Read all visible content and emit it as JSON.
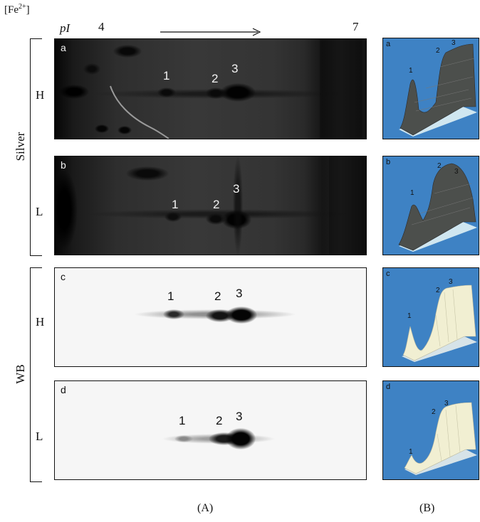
{
  "header": {
    "concentration_label_base": "[Fe",
    "concentration_label_sup": "2+",
    "concentration_label_close": "]",
    "pi_label": "pI",
    "ph_start": "4",
    "ph_end": "7"
  },
  "groups": [
    {
      "label": "Silver",
      "rows": [
        "H",
        "L"
      ]
    },
    {
      "label": "WB",
      "rows": [
        "H",
        "L"
      ]
    }
  ],
  "panels": [
    {
      "letter": "a",
      "spots": [
        "1",
        "2",
        "3"
      ]
    },
    {
      "letter": "b",
      "spots": [
        "1",
        "2",
        "3"
      ]
    },
    {
      "letter": "c",
      "spots": [
        "1",
        "2",
        "3"
      ]
    },
    {
      "letter": "d",
      "spots": [
        "1",
        "2",
        "3"
      ]
    }
  ],
  "thumbs": [
    {
      "letter": "a",
      "peaks": [
        "1",
        "2",
        "3"
      ]
    },
    {
      "letter": "b",
      "peaks": [
        "1",
        "2",
        "3"
      ]
    },
    {
      "letter": "c",
      "peaks": [
        "1",
        "2",
        "3"
      ]
    },
    {
      "letter": "d",
      "peaks": [
        "1",
        "2",
        "3"
      ]
    }
  ],
  "captions": {
    "left": "(A)",
    "right": "(B)"
  },
  "colors": {
    "thumb_background": "#3e82c4",
    "silver_surface": "#4a4d4a",
    "wb_surface": "#f1efd2"
  }
}
